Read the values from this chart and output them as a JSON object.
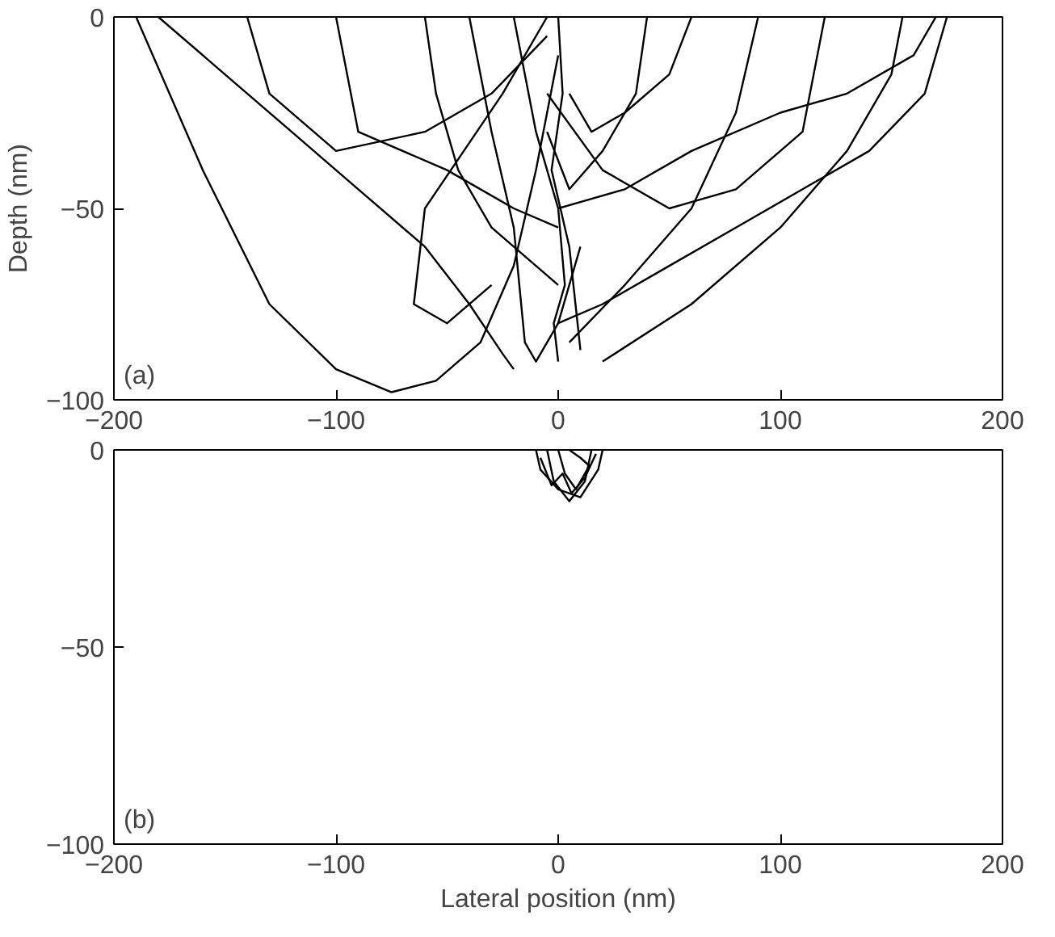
{
  "chart_data": [
    {
      "type": "line",
      "ylabel": "Depth (nm)",
      "annotations": [
        "(a)"
      ],
      "xlim": [
        -200,
        200
      ],
      "ylim": [
        -100,
        0
      ],
      "xticks": [
        -200,
        -100,
        0,
        100,
        200
      ],
      "yticks": [
        -100,
        -50,
        0
      ],
      "series": [
        {
          "color": "#000000",
          "x": [
            -190,
            -160,
            -130,
            -100,
            -75,
            -55,
            -35,
            -20,
            -10,
            0
          ],
          "values": [
            0,
            -40,
            -75,
            -92,
            -98,
            -95,
            -85,
            -65,
            -40,
            -10
          ]
        },
        {
          "color": "#000000",
          "x": [
            -180,
            -150,
            -120,
            -90,
            -60,
            -40,
            -25,
            -20
          ],
          "values": [
            0,
            -15,
            -30,
            -45,
            -60,
            -75,
            -88,
            -92
          ]
        },
        {
          "color": "#000000",
          "x": [
            175,
            165,
            140,
            110,
            80,
            50,
            20,
            0
          ],
          "values": [
            0,
            -20,
            -35,
            -45,
            -55,
            -65,
            -75,
            -80
          ]
        },
        {
          "color": "#000000",
          "x": [
            155,
            150,
            130,
            100,
            60,
            20
          ],
          "values": [
            0,
            -15,
            -35,
            -55,
            -75,
            -90
          ]
        },
        {
          "color": "#000000",
          "x": [
            170,
            160,
            130,
            100,
            60,
            30,
            0
          ],
          "values": [
            0,
            -10,
            -20,
            -25,
            -35,
            -45,
            -50
          ]
        },
        {
          "color": "#000000",
          "x": [
            -60,
            -55,
            -45,
            -30,
            -10,
            0
          ],
          "values": [
            0,
            -20,
            -40,
            -55,
            -65,
            -70
          ]
        },
        {
          "color": "#000000",
          "x": [
            -40,
            -30,
            -20,
            -15,
            -10,
            0,
            10
          ],
          "values": [
            0,
            -30,
            -55,
            -85,
            -90,
            -80,
            -60
          ]
        },
        {
          "color": "#000000",
          "x": [
            0,
            2,
            -3,
            5,
            10
          ],
          "values": [
            0,
            -20,
            -40,
            -60,
            -87
          ]
        },
        {
          "color": "#000000",
          "x": [
            -100,
            -90,
            -50,
            -20,
            0
          ],
          "values": [
            0,
            -30,
            -40,
            -50,
            -55
          ]
        },
        {
          "color": "#000000",
          "x": [
            90,
            80,
            60,
            30,
            5
          ],
          "values": [
            0,
            -25,
            -50,
            -70,
            -85
          ]
        },
        {
          "color": "#000000",
          "x": [
            -5,
            -25,
            -60,
            -65,
            -50,
            -30
          ],
          "values": [
            0,
            -20,
            -50,
            -75,
            -80,
            -70
          ]
        },
        {
          "color": "#000000",
          "x": [
            120,
            110,
            80,
            50,
            20,
            -5
          ],
          "values": [
            0,
            -30,
            -45,
            -50,
            -40,
            -20
          ]
        },
        {
          "color": "#000000",
          "x": [
            -140,
            -130,
            -100,
            -60,
            -30,
            -5
          ],
          "values": [
            0,
            -20,
            -35,
            -30,
            -20,
            -5
          ]
        },
        {
          "color": "#000000",
          "x": [
            40,
            35,
            20,
            5,
            -5
          ],
          "values": [
            0,
            -20,
            -35,
            -45,
            -30
          ]
        },
        {
          "color": "#000000",
          "x": [
            -20,
            -10,
            0,
            3,
            -2,
            0
          ],
          "values": [
            0,
            -30,
            -50,
            -70,
            -80,
            -90
          ]
        },
        {
          "color": "#000000",
          "x": [
            60,
            50,
            30,
            15,
            5
          ],
          "values": [
            0,
            -15,
            -25,
            -30,
            -20
          ]
        }
      ]
    },
    {
      "type": "line",
      "xlabel": "Lateral position (nm)",
      "annotations": [
        "(b)"
      ],
      "xlim": [
        -200,
        200
      ],
      "ylim": [
        -100,
        0
      ],
      "xticks": [
        -200,
        -100,
        0,
        100,
        200
      ],
      "yticks": [
        -100,
        -50,
        0
      ],
      "series": [
        {
          "color": "#000000",
          "x": [
            -10,
            -8,
            0,
            10,
            18,
            20
          ],
          "values": [
            0,
            -5,
            -10,
            -12,
            -5,
            0
          ]
        },
        {
          "color": "#000000",
          "x": [
            -5,
            -2,
            5,
            12,
            15
          ],
          "values": [
            0,
            -8,
            -13,
            -8,
            0
          ]
        },
        {
          "color": "#000000",
          "x": [
            0,
            3,
            8,
            14,
            10,
            5
          ],
          "values": [
            0,
            -6,
            -10,
            -4,
            -2,
            0
          ]
        },
        {
          "color": "#000000",
          "x": [
            -8,
            -3,
            2,
            6,
            12,
            17
          ],
          "values": [
            -2,
            -9,
            -6,
            -11,
            -7,
            -1
          ]
        }
      ]
    }
  ]
}
